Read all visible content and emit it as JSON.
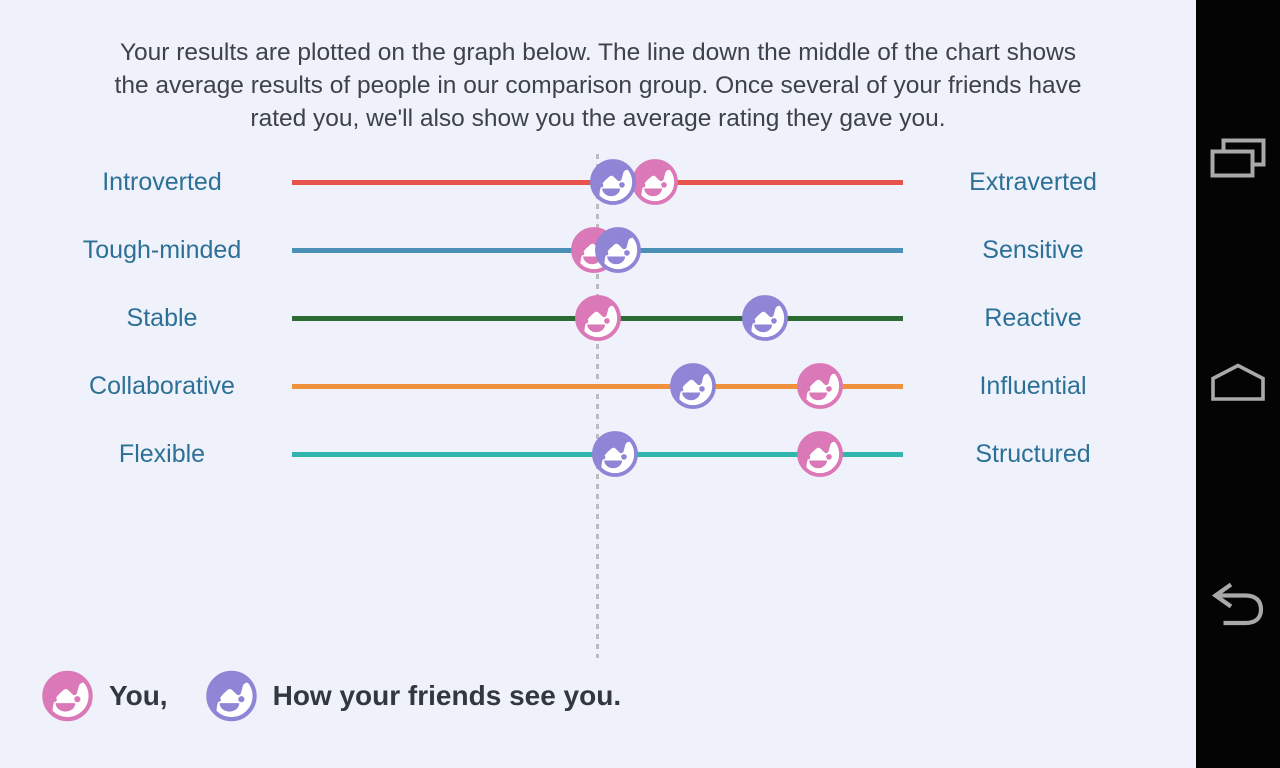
{
  "intro": {
    "lines": [
      "Your results are plotted on the graph below. The line down the middle of the chart shows",
      "the average results of people in our comparison group. Once several of your friends have",
      "rated you, we'll also show you the average rating they gave you."
    ]
  },
  "chart_data": {
    "type": "dumbbell",
    "scale_pct_range": [
      0,
      100
    ],
    "center_line_pct": 50,
    "center_line_style": "dashed",
    "rows": [
      {
        "left": "Introverted",
        "right": "Extraverted",
        "line_color": "#e8544b",
        "markers": [
          {
            "who": "you",
            "pct": 59.4,
            "offset": 363
          },
          {
            "who": "friends",
            "pct": 52.5,
            "offset": 321
          }
        ]
      },
      {
        "left": "Tough-minded",
        "right": "Sensitive",
        "line_color": "#4b90b6",
        "markers": [
          {
            "who": "you",
            "pct": 49.4,
            "offset": 302
          },
          {
            "who": "friends",
            "pct": 53.4,
            "offset": 326
          }
        ]
      },
      {
        "left": "Stable",
        "right": "Reactive",
        "line_color": "#2d6b35",
        "markers": [
          {
            "who": "you",
            "pct": 50.1,
            "offset": 306
          },
          {
            "who": "friends",
            "pct": 77.4,
            "offset": 473
          }
        ]
      },
      {
        "left": "Collaborative",
        "right": "Influential",
        "line_color": "#f0923c",
        "markers": [
          {
            "who": "friends",
            "pct": 65.6,
            "offset": 401
          },
          {
            "who": "you",
            "pct": 86.4,
            "offset": 528
          }
        ]
      },
      {
        "left": "Flexible",
        "right": "Structured",
        "line_color": "#30b6ac",
        "markers": [
          {
            "who": "friends",
            "pct": 52.9,
            "offset": 323
          },
          {
            "who": "you",
            "pct": 86.4,
            "offset": 528
          }
        ]
      }
    ]
  },
  "legend": {
    "you_label": "You,",
    "friends_label": "How your friends see you."
  },
  "colors": {
    "you": "#db78b7",
    "friends": "#8f85d6",
    "background": "#eff2fa",
    "trait_label": "#2d7097",
    "dashed_line": "#bcbcbc",
    "nav_icon": "#a9a9a9"
  },
  "nav": {
    "items": [
      {
        "name": "recents"
      },
      {
        "name": "home"
      },
      {
        "name": "back"
      }
    ]
  }
}
